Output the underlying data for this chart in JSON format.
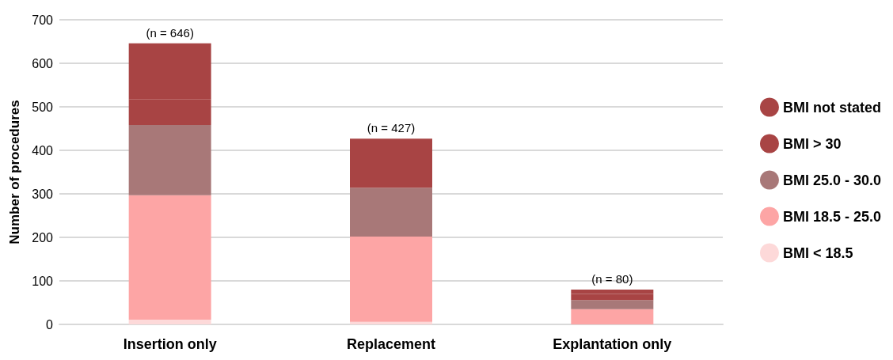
{
  "chart_data": {
    "type": "bar",
    "stacked": true,
    "ylabel": "Number of procedures",
    "categories": [
      "Insertion only",
      "Replacement",
      "Explantation only"
    ],
    "series": [
      {
        "name": "BMI < 18.5",
        "color": "#fdd9d9",
        "values": [
          11,
          6,
          null
        ]
      },
      {
        "name": "BMI 18.5 - 25.0",
        "color": "#fda5a5",
        "values": [
          286,
          196,
          35
        ]
      },
      {
        "name": "BMI 25.0 - 30.0",
        "color": "#a87878",
        "values": [
          161,
          112,
          21
        ]
      },
      {
        "name": "BMI > 30",
        "color": "#a84444",
        "values": [
          59,
          46,
          14
        ]
      },
      {
        "name": "BMI not stated",
        "color": "#a84444",
        "values": [
          129,
          67,
          10
        ]
      }
    ],
    "totals": [
      "(n = 646)",
      "(n = 427)",
      "(n = 80)"
    ],
    "ylim": [
      0,
      700
    ],
    "yticks": [
      0,
      100,
      200,
      300,
      400,
      500,
      600,
      700
    ],
    "grid": "y",
    "legend": "right"
  }
}
